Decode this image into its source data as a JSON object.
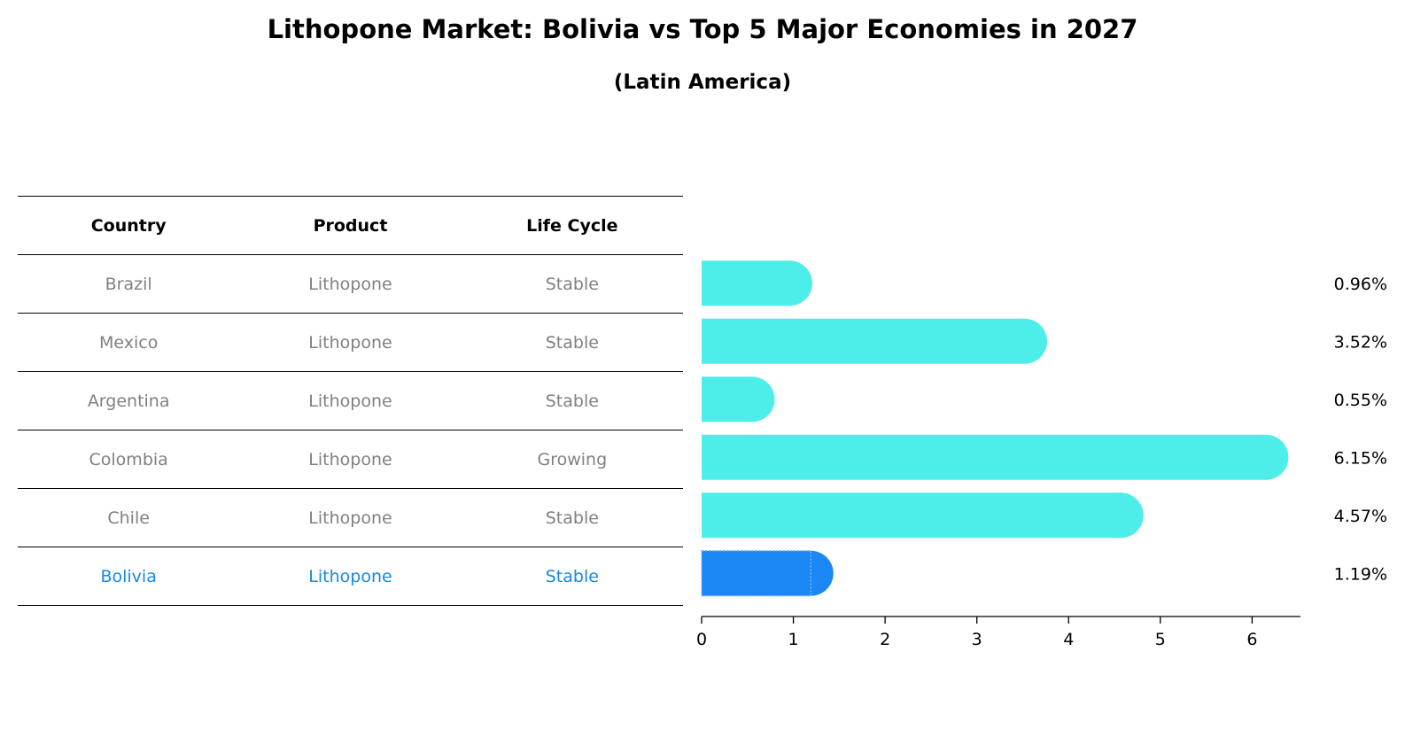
{
  "header": {
    "title": "Lithopone Market: Bolivia vs Top 5 Major Economies in 2027",
    "subtitle": "(Latin America)"
  },
  "table": {
    "columns": [
      "Country",
      "Product",
      "Life Cycle"
    ],
    "rows": [
      {
        "country": "Brazil",
        "product": "Lithopone",
        "life_cycle": "Stable",
        "highlight": false
      },
      {
        "country": "Mexico",
        "product": "Lithopone",
        "life_cycle": "Stable",
        "highlight": false
      },
      {
        "country": "Argentina",
        "product": "Lithopone",
        "life_cycle": "Stable",
        "highlight": false
      },
      {
        "country": "Colombia",
        "product": "Lithopone",
        "life_cycle": "Growing",
        "highlight": false
      },
      {
        "country": "Chile",
        "product": "Lithopone",
        "life_cycle": "Stable",
        "highlight": false
      },
      {
        "country": "Bolivia",
        "product": "Lithopone",
        "life_cycle": "Stable",
        "highlight": true
      }
    ]
  },
  "chart_data": {
    "type": "bar",
    "orientation": "horizontal",
    "title": "Lithopone Market: Bolivia vs Top 5 Major Economies in 2027",
    "subtitle": "(Latin America)",
    "categories": [
      "Brazil",
      "Mexico",
      "Argentina",
      "Colombia",
      "Chile",
      "Bolivia"
    ],
    "values": [
      0.96,
      3.52,
      0.55,
      6.15,
      4.57,
      1.19
    ],
    "value_labels": [
      "0.96%",
      "3.52%",
      "0.55%",
      "6.15%",
      "4.57%",
      "1.19%"
    ],
    "xlim": [
      0,
      6.45
    ],
    "xticks": [
      0,
      1,
      2,
      3,
      4,
      5,
      6
    ],
    "xlabel": "",
    "ylabel": "",
    "grid": false,
    "colors": {
      "default": "#4deeea",
      "highlight": "#1a87f5",
      "highlight_text": "#1a87e6",
      "muted_text": "#808080"
    },
    "highlight_category": "Bolivia"
  }
}
